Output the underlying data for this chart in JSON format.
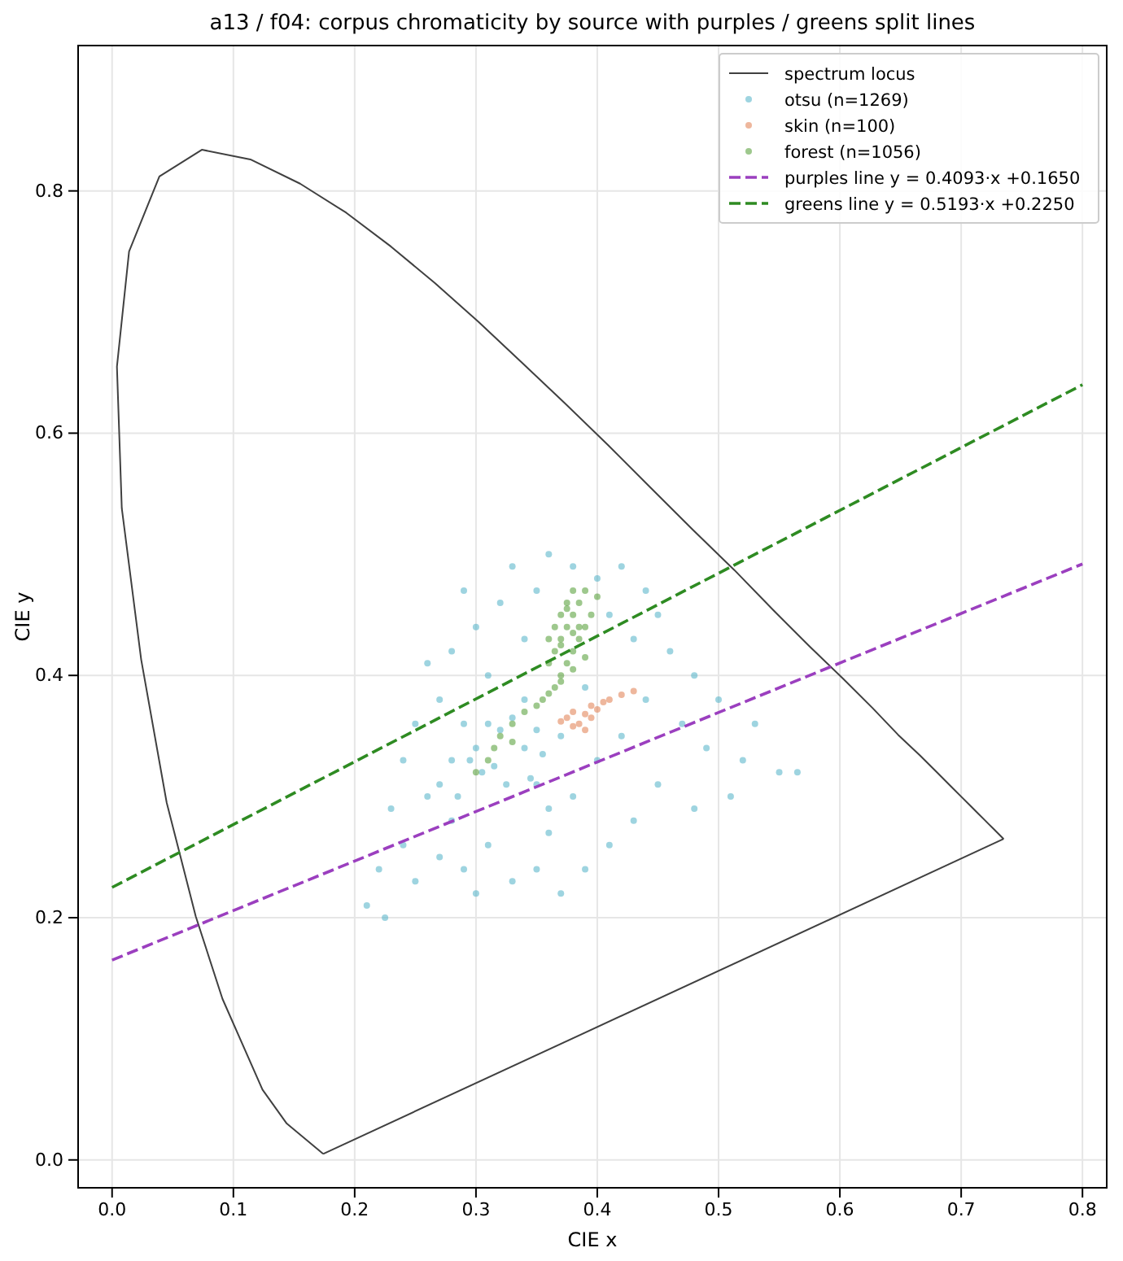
{
  "chart_data": {
    "type": "scatter",
    "title": "a13 / f04: corpus chromaticity by source with purples / greens split lines",
    "xlabel": "CIE x",
    "ylabel": "CIE y",
    "xlim": [
      -0.028,
      0.82
    ],
    "ylim": [
      -0.023,
      0.92
    ],
    "xticks": [
      {
        "value": 0,
        "label": "0.0"
      },
      0.1,
      0.2,
      0.3,
      0.4,
      0.5,
      0.6,
      0.7,
      {
        "value": 0.8,
        "label": "0.8"
      }
    ],
    "yticks": [
      {
        "value": 0,
        "label": "0.0"
      },
      0.2,
      0.4,
      0.6,
      0.8
    ],
    "grid": true,
    "legend": "top right",
    "series": [
      {
        "name": "spectrum locus",
        "type": "line",
        "color": "#404040",
        "line_style": "solid",
        "x": [
          0.174,
          0.144,
          0.124,
          0.091,
          0.069,
          0.045,
          0.024,
          0.008,
          0.004,
          0.014,
          0.039,
          0.074,
          0.114,
          0.155,
          0.193,
          0.23,
          0.266,
          0.302,
          0.337,
          0.373,
          0.409,
          0.444,
          0.479,
          0.513,
          0.545,
          0.575,
          0.603,
          0.627,
          0.648,
          0.666,
          0.68,
          0.692,
          0.701,
          0.708,
          0.714,
          0.719,
          0.723,
          0.726,
          0.735
        ],
        "values": [
          0.005,
          0.03,
          0.058,
          0.133,
          0.201,
          0.295,
          0.413,
          0.538,
          0.655,
          0.75,
          0.812,
          0.834,
          0.826,
          0.806,
          0.782,
          0.754,
          0.724,
          0.692,
          0.659,
          0.625,
          0.59,
          0.555,
          0.52,
          0.487,
          0.454,
          0.424,
          0.397,
          0.373,
          0.351,
          0.334,
          0.32,
          0.308,
          0.299,
          0.292,
          0.286,
          0.281,
          0.277,
          0.274,
          0.265
        ]
      },
      {
        "type": "line",
        "color": "#404040",
        "line_style": "solid",
        "x": [
          0.174,
          0.735
        ],
        "values": [
          0.005,
          0.265
        ]
      },
      {
        "name": "otsu (n=1269)",
        "color": "#4fb0c6",
        "marker": "circle",
        "x": [
          0.21,
          0.225,
          0.22,
          0.24,
          0.25,
          0.27,
          0.23,
          0.26,
          0.28,
          0.29,
          0.3,
          0.31,
          0.24,
          0.25,
          0.27,
          0.26,
          0.28,
          0.3,
          0.29,
          0.32,
          0.33,
          0.35,
          0.34,
          0.36,
          0.38,
          0.4,
          0.42,
          0.44,
          0.45,
          0.43,
          0.41,
          0.46,
          0.48,
          0.5,
          0.47,
          0.49,
          0.52,
          0.55,
          0.565,
          0.53,
          0.51,
          0.48,
          0.45,
          0.43,
          0.41,
          0.39,
          0.37,
          0.35,
          0.33,
          0.36,
          0.38,
          0.4,
          0.42,
          0.44,
          0.39,
          0.37,
          0.35,
          0.34,
          0.31,
          0.29,
          0.28,
          0.27,
          0.3,
          0.31,
          0.33,
          0.35,
          0.355,
          0.345,
          0.325,
          0.305,
          0.295,
          0.32,
          0.34,
          0.315,
          0.285,
          0.36
        ],
        "values": [
          0.21,
          0.2,
          0.24,
          0.26,
          0.23,
          0.25,
          0.29,
          0.3,
          0.28,
          0.24,
          0.22,
          0.26,
          0.33,
          0.36,
          0.38,
          0.41,
          0.42,
          0.44,
          0.47,
          0.46,
          0.49,
          0.47,
          0.43,
          0.5,
          0.49,
          0.48,
          0.49,
          0.47,
          0.45,
          0.43,
          0.45,
          0.42,
          0.4,
          0.38,
          0.36,
          0.34,
          0.33,
          0.32,
          0.32,
          0.36,
          0.3,
          0.29,
          0.31,
          0.28,
          0.26,
          0.24,
          0.22,
          0.24,
          0.23,
          0.27,
          0.3,
          0.33,
          0.35,
          0.38,
          0.39,
          0.35,
          0.31,
          0.38,
          0.4,
          0.36,
          0.33,
          0.31,
          0.34,
          0.36,
          0.365,
          0.355,
          0.335,
          0.315,
          0.31,
          0.32,
          0.33,
          0.355,
          0.34,
          0.325,
          0.3,
          0.29
        ]
      },
      {
        "name": "skin (n=100)",
        "color": "#e07b4c",
        "marker": "circle",
        "x": [
          0.375,
          0.38,
          0.385,
          0.39,
          0.395,
          0.38,
          0.39,
          0.4,
          0.405,
          0.41,
          0.42,
          0.43,
          0.37,
          0.395
        ],
        "values": [
          0.365,
          0.37,
          0.36,
          0.368,
          0.375,
          0.358,
          0.355,
          0.372,
          0.378,
          0.38,
          0.384,
          0.387,
          0.362,
          0.365
        ]
      },
      {
        "name": "forest (n=1056)",
        "color": "#4e9a2f",
        "marker": "circle",
        "x": [
          0.36,
          0.365,
          0.37,
          0.375,
          0.38,
          0.385,
          0.39,
          0.37,
          0.375,
          0.38,
          0.385,
          0.365,
          0.37,
          0.375,
          0.38,
          0.39,
          0.36,
          0.37,
          0.38,
          0.375,
          0.385,
          0.37,
          0.38,
          0.39,
          0.395,
          0.4,
          0.365,
          0.36,
          0.35,
          0.34,
          0.33,
          0.32,
          0.315,
          0.31,
          0.3,
          0.33,
          0.355
        ],
        "values": [
          0.41,
          0.42,
          0.43,
          0.44,
          0.45,
          0.46,
          0.47,
          0.4,
          0.41,
          0.42,
          0.43,
          0.44,
          0.45,
          0.46,
          0.47,
          0.44,
          0.43,
          0.395,
          0.405,
          0.455,
          0.44,
          0.425,
          0.435,
          0.415,
          0.45,
          0.465,
          0.39,
          0.385,
          0.375,
          0.37,
          0.36,
          0.35,
          0.34,
          0.33,
          0.32,
          0.345,
          0.38
        ]
      },
      {
        "name": "purples line  y = 0.4093·x +0.1650",
        "type": "line",
        "color": "#9b3fbf",
        "line_style": "dashed",
        "x": [
          0,
          0.8
        ],
        "values": [
          0.165,
          0.492
        ]
      },
      {
        "name": "greens line  y = 0.5193·x +0.2250",
        "type": "line",
        "color": "#2e8b22",
        "line_style": "dashed",
        "x": [
          0,
          0.8
        ],
        "values": [
          0.225,
          0.64
        ]
      }
    ]
  }
}
